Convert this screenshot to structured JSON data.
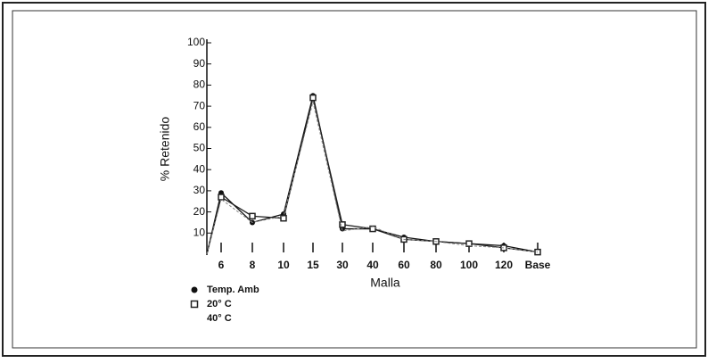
{
  "chart_data": {
    "type": "line",
    "x_label": "Malla",
    "y_label": "% Retenido",
    "categories": [
      null,
      "6",
      "8",
      "10",
      "15",
      "30",
      "40",
      "60",
      "80",
      "100",
      "120",
      "Base"
    ],
    "ylim": [
      0,
      100
    ],
    "yticks": [
      10,
      20,
      30,
      40,
      50,
      60,
      70,
      80,
      90,
      100
    ],
    "series": [
      {
        "name": "Temp. Amb",
        "color": "#111111",
        "marker": "circle",
        "values": [
          0,
          29,
          15,
          19,
          75,
          12,
          12,
          8,
          6,
          5,
          4,
          1
        ]
      },
      {
        "name": "20° C",
        "color": "#222222",
        "marker": "square",
        "values": [
          0,
          27,
          18,
          17,
          74,
          14,
          12,
          7,
          6,
          5,
          3,
          1
        ]
      },
      {
        "name": "40° C",
        "color": "#888888",
        "marker": "none",
        "values": [
          0,
          26,
          15,
          18,
          72,
          11,
          13,
          7,
          6,
          4,
          3,
          1
        ]
      }
    ]
  }
}
